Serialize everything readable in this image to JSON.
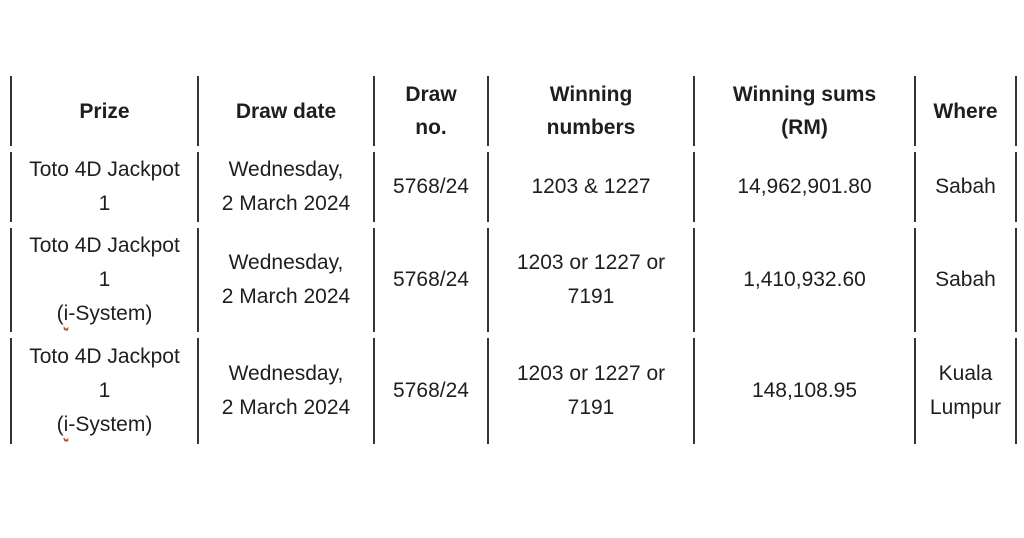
{
  "page": {
    "background": "#ffffff"
  },
  "table": {
    "border_color": "#343434",
    "text_color": "#1e1e1e",
    "squiggle_color": "#c0453a",
    "column_keys": [
      "prize",
      "draw_date",
      "draw_no",
      "winning_numbers",
      "winning_sums",
      "where"
    ],
    "columns": [
      {
        "key": "prize",
        "label_lines": [
          [
            "Prize"
          ]
        ]
      },
      {
        "key": "draw_date",
        "label_lines": [
          [
            "Draw date"
          ]
        ]
      },
      {
        "key": "draw_no",
        "label_lines": [
          [
            "Draw"
          ],
          [
            "no."
          ]
        ]
      },
      {
        "key": "winning_numbers",
        "label_lines": [
          [
            "Winning"
          ],
          [
            "numbers"
          ]
        ]
      },
      {
        "key": "winning_sums",
        "label_lines": [
          [
            "Winning sums"
          ],
          [
            "(RM)"
          ]
        ]
      },
      {
        "key": "where",
        "label_lines": [
          [
            "Where"
          ]
        ]
      }
    ],
    "rows": [
      {
        "prize": [
          [
            "Toto 4D Jackpot"
          ],
          [
            "1"
          ]
        ],
        "draw_date": [
          [
            "Wednesday,"
          ],
          [
            "2 March 2024"
          ]
        ],
        "draw_no": [
          [
            "5768/24"
          ]
        ],
        "winning_numbers": [
          [
            "1203 & 1227"
          ]
        ],
        "winning_sums": [
          [
            "14,962,901.80"
          ]
        ],
        "where": [
          [
            "Sabah"
          ]
        ]
      },
      {
        "prize": [
          [
            "Toto 4D Jackpot"
          ],
          [
            "1"
          ],
          [
            "(",
            {
              "text": "i",
              "squiggle": true
            },
            "-System)"
          ]
        ],
        "draw_date": [
          [
            "Wednesday,"
          ],
          [
            "2 March 2024"
          ]
        ],
        "draw_no": [
          [
            "5768/24"
          ]
        ],
        "winning_numbers": [
          [
            "1203 or 1227 or"
          ],
          [
            "7191"
          ]
        ],
        "winning_sums": [
          [
            "1,410,932.60"
          ]
        ],
        "where": [
          [
            "Sabah"
          ]
        ]
      },
      {
        "prize": [
          [
            "Toto 4D Jackpot"
          ],
          [
            "1"
          ],
          [
            "(",
            {
              "text": "i",
              "squiggle": true
            },
            "-System)"
          ]
        ],
        "draw_date": [
          [
            "Wednesday,"
          ],
          [
            "2 March 2024"
          ]
        ],
        "draw_no": [
          [
            "5768/24"
          ]
        ],
        "winning_numbers": [
          [
            "1203 or 1227 or"
          ],
          [
            "7191"
          ]
        ],
        "winning_sums": [
          [
            "148,108.95"
          ]
        ],
        "where": [
          [
            "Kuala"
          ],
          [
            "Lumpur"
          ]
        ]
      }
    ]
  }
}
